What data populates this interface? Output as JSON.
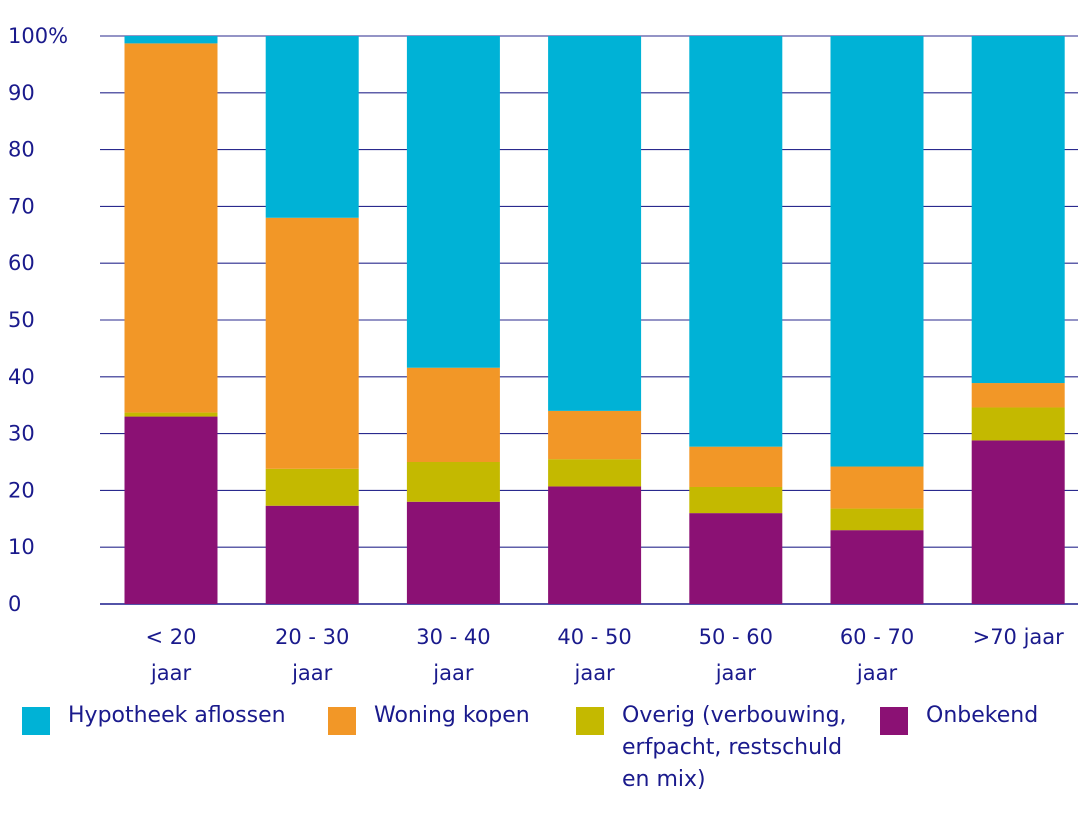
{
  "chart_data": {
    "type": "bar",
    "stacked": true,
    "categories": [
      [
        "< 20",
        "jaar"
      ],
      [
        "20 - 30",
        "jaar"
      ],
      [
        "30 - 40",
        "jaar"
      ],
      [
        "40 - 50",
        "jaar"
      ],
      [
        "50 - 60",
        "jaar"
      ],
      [
        "60 - 70",
        "jaar"
      ],
      [
        ">70 jaar"
      ]
    ],
    "y_ticks": [
      "0",
      "10",
      "20",
      "30",
      "40",
      "50",
      "60",
      "70",
      "80",
      "90",
      "100%"
    ],
    "ylim": [
      0,
      100
    ],
    "grid": true,
    "legend_position": "bottom",
    "series": [
      {
        "name": "Onbekend",
        "color": "#8B1174",
        "values": [
          33,
          17.3,
          18,
          20.7,
          16,
          13,
          28.8
        ]
      },
      {
        "name": "Overig (verbouwing, erfpacht, restschuld en mix)",
        "color": "#C4B900",
        "values": [
          0.7,
          6.5,
          7,
          4.8,
          4.6,
          3.8,
          5.8
        ]
      },
      {
        "name": "Woning kopen",
        "color": "#F29727",
        "values": [
          65,
          44.2,
          16.6,
          8.5,
          7.1,
          7.4,
          4.3
        ]
      },
      {
        "name": "Hypotheek aflossen",
        "color": "#00B2D6",
        "values": [
          1.3,
          32,
          58.4,
          66,
          72.3,
          75.8,
          61.1
        ]
      }
    ]
  },
  "legend": [
    {
      "label": "Hypotheek aflossen",
      "color": "#00B2D6"
    },
    {
      "label": "Woning kopen",
      "color": "#F29727"
    },
    {
      "label": "Overig (verbouwing, erfpacht, restschuld en mix)",
      "color": "#C4B900"
    },
    {
      "label": "Onbekend",
      "color": "#8B1174"
    }
  ]
}
